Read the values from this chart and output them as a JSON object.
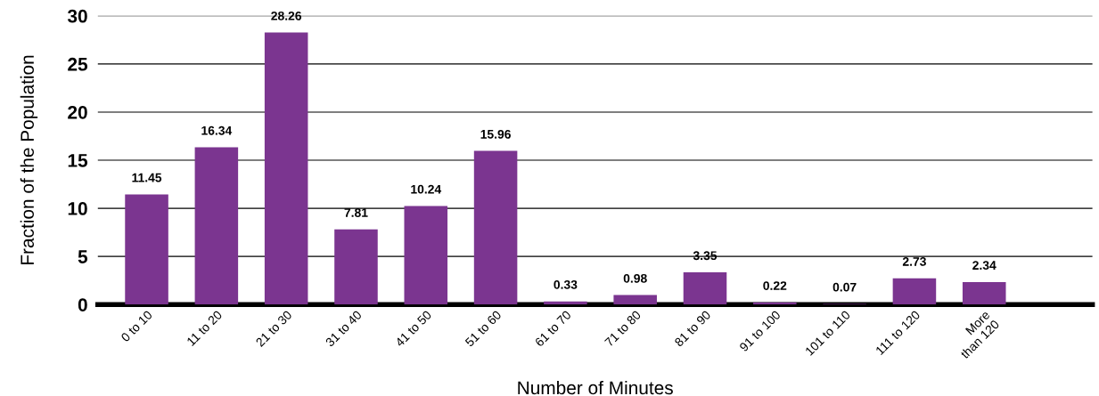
{
  "chart_data": {
    "type": "bar",
    "xlabel": "Number of Minutes",
    "ylabel": "Fraction of the Population",
    "categories": [
      "0 to 10",
      "11 to 20",
      "21 to 30",
      "31 to 40",
      "41 to 50",
      "51 to 60",
      "61 to 70",
      "71 to 80",
      "81 to 90",
      "91 to 100",
      "101 to 110",
      "111 to 120",
      "More\nthan 120"
    ],
    "values": [
      11.45,
      16.34,
      28.26,
      7.81,
      10.24,
      15.96,
      0.33,
      0.98,
      3.35,
      0.22,
      0.07,
      2.73,
      2.34
    ],
    "color": "#7b3590",
    "ylim": [
      0,
      30
    ],
    "yticks": [
      0,
      5,
      10,
      15,
      20,
      25,
      30
    ],
    "grid": "y",
    "data_labels": true
  }
}
